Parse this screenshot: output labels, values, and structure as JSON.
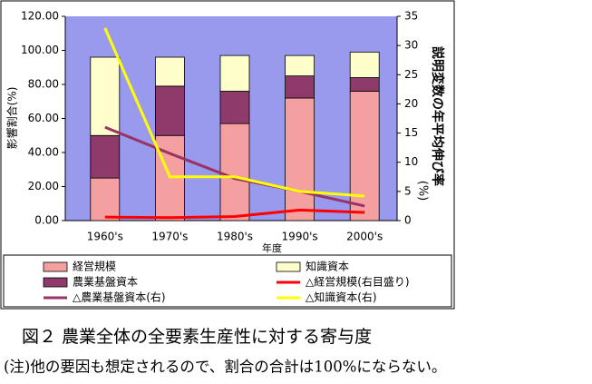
{
  "chart_data": {
    "type": "bar",
    "categories": [
      "1960's",
      "1970's",
      "1980's",
      "1990's",
      "2000's"
    ],
    "xlabel": "年度",
    "ylabel": "影響割合(%)",
    "y2label": [
      "説明変数の年平均伸び率",
      "(%)"
    ],
    "ylim": [
      0,
      120
    ],
    "yticks": [
      {
        "value": 0,
        "label": "0.00"
      },
      {
        "value": 20,
        "label": "20.00"
      },
      {
        "value": 40,
        "label": "40.00"
      },
      {
        "value": 60,
        "label": "60.00"
      },
      {
        "value": 80,
        "label": "80.00"
      },
      {
        "value": 100,
        "label": "100.00"
      },
      {
        "value": 120,
        "label": "120.00"
      }
    ],
    "y2lim": [
      0,
      35
    ],
    "y2ticks": [
      0,
      5,
      10,
      15,
      20,
      25,
      30,
      35
    ],
    "series": [
      {
        "name": "経営規模",
        "type": "bar",
        "color": "#f4a0a0",
        "values": [
          25,
          50,
          57,
          72,
          76
        ]
      },
      {
        "name": "農業基盤資本",
        "type": "bar",
        "color": "#8e3a6a",
        "values": [
          25,
          29,
          19,
          13,
          8
        ]
      },
      {
        "name": "知識資本",
        "type": "bar",
        "color": "#ffffcc",
        "values": [
          46,
          17,
          21,
          12,
          15
        ]
      },
      {
        "name": "△経営規模(右目盛り)",
        "type": "line",
        "axis": "y2",
        "color": "#ff0000",
        "values": [
          0.6,
          0.5,
          0.7,
          1.8,
          1.4
        ]
      },
      {
        "name": "△農業基盤資本(右)",
        "type": "line",
        "axis": "y2",
        "color": "#993366",
        "values": [
          16,
          11.5,
          7.2,
          5,
          2.5
        ]
      },
      {
        "name": "△知識資本(右)",
        "type": "line",
        "axis": "y2",
        "color": "#ffff00",
        "values": [
          33,
          7.5,
          7.5,
          5,
          4.2
        ]
      }
    ]
  },
  "figure": {
    "caption": "図２ 農業全体の全要素生産性に対する寄与度",
    "note": "(注)他の要因も想定されるので、割合の合計は100%にならない。"
  }
}
